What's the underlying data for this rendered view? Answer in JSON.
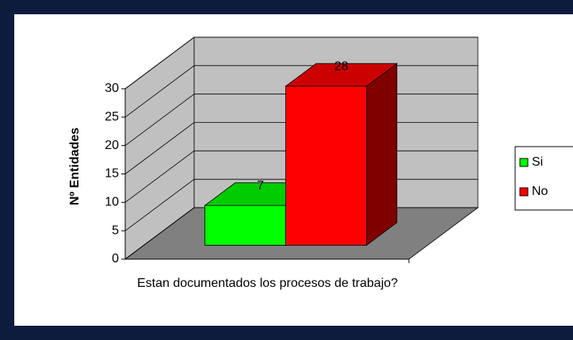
{
  "chart_data": {
    "type": "bar3d",
    "y_label": "Nº Entidades",
    "categories": [
      "Estan documentados los procesos de trabajo?"
    ],
    "series": [
      {
        "name": "Si",
        "color": "#00ff00",
        "values": [
          7
        ]
      },
      {
        "name": "No",
        "color": "#ff0000",
        "values": [
          28
        ]
      }
    ],
    "ylim": [
      0,
      30
    ],
    "yticks": [
      0,
      5,
      10,
      15,
      20,
      25,
      30
    ],
    "grid": true,
    "legend": "right"
  }
}
